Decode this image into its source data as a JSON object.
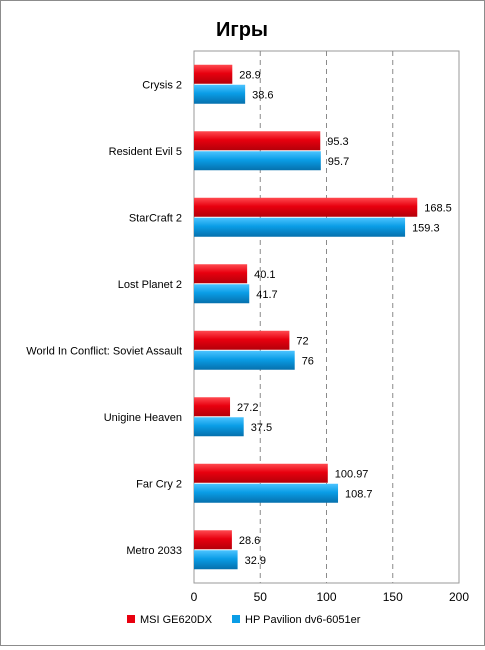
{
  "chart_data": {
    "type": "bar",
    "orientation": "horizontal",
    "title": "Игры",
    "categories": [
      "Crysis 2",
      "Resident Evil 5",
      "StarCraft 2",
      "Lost Planet 2",
      "World In Conflict: Soviet Assault",
      "Unigine Heaven",
      "Far Cry 2",
      "Metro 2033"
    ],
    "series": [
      {
        "name": "MSI GE620DX",
        "color": "#e8000f",
        "values": [
          28.9,
          95.3,
          168.5,
          40.1,
          72,
          27.2,
          100.97,
          28.6
        ],
        "labels": [
          "28.9",
          "95.3",
          "168.5",
          "40.1",
          "72",
          "27.2",
          "100.97",
          "28.6"
        ]
      },
      {
        "name": "HP Pavilion dv6-6051er",
        "color": "#0a9de6",
        "values": [
          38.6,
          95.7,
          159.3,
          41.7,
          76,
          37.5,
          108.7,
          32.9
        ],
        "labels": [
          "38.6",
          "95.7",
          "159.3",
          "41.7",
          "76",
          "37.5",
          "108.7",
          "32.9"
        ]
      }
    ],
    "xlim": [
      0,
      200
    ],
    "xticks": [
      "0",
      "50",
      "100",
      "150",
      "200"
    ],
    "grid": "vertical-dashed",
    "legend_position": "bottom"
  }
}
